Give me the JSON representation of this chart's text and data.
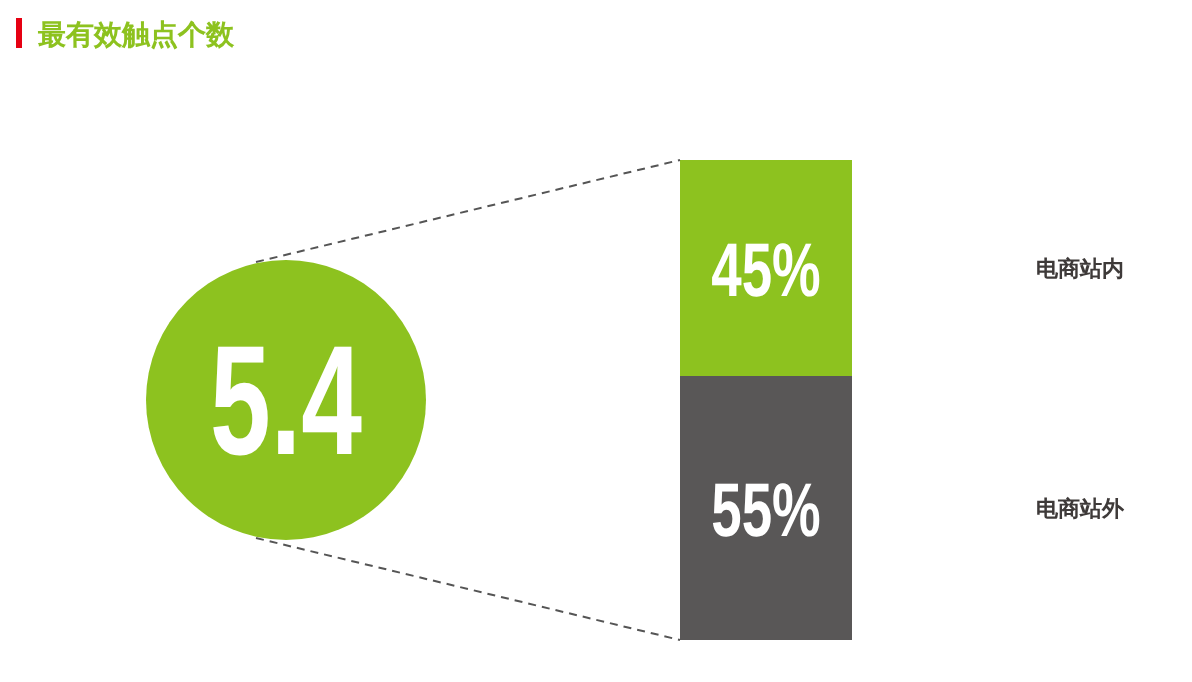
{
  "chart_data": {
    "type": "bar",
    "title": "最有效触点个数",
    "stacked": true,
    "categories": [
      null
    ],
    "series": [
      {
        "name": "电商站外",
        "color": "#595757",
        "values": [
          55
        ],
        "value_labels": [
          "55%"
        ]
      },
      {
        "name": "电商站内",
        "color": "#8dc21f",
        "values": [
          45
        ],
        "value_labels": [
          "45%"
        ]
      }
    ],
    "annotations": [
      "5.4"
    ]
  }
}
